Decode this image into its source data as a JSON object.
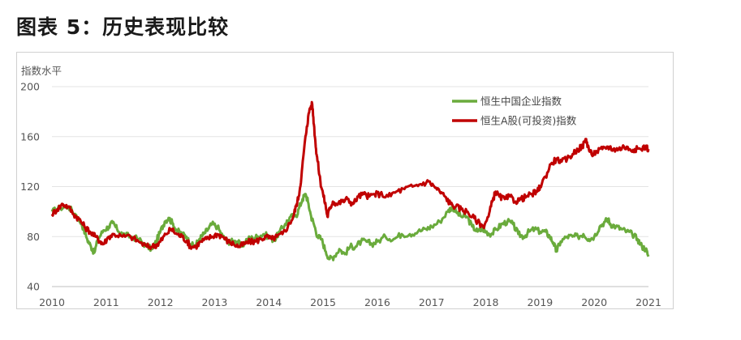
{
  "page": {
    "title": "图表 5：历史表现比较"
  },
  "chart_data": {
    "type": "line",
    "ylabel": "指数水平",
    "xlabel": "",
    "ylim": [
      40,
      200
    ],
    "xlim": [
      2010,
      2021
    ],
    "y_ticks": [
      "40",
      "80",
      "120",
      "160",
      "200"
    ],
    "x_ticks": [
      "2010",
      "2011",
      "2012",
      "2013",
      "2014",
      "2015",
      "2016",
      "2017",
      "2018",
      "2019",
      "2020",
      "2021"
    ],
    "grid": "horizontal",
    "legend_position": "top-right",
    "series": [
      {
        "name": "恒生中国企业指数",
        "color": "#6aab3c",
        "points": [
          [
            2010.0,
            100
          ],
          [
            2010.15,
            103
          ],
          [
            2010.3,
            104
          ],
          [
            2010.45,
            97
          ],
          [
            2010.55,
            90
          ],
          [
            2010.65,
            78
          ],
          [
            2010.72,
            72
          ],
          [
            2010.78,
            67
          ],
          [
            2010.85,
            78
          ],
          [
            2010.95,
            85
          ],
          [
            2011.05,
            88
          ],
          [
            2011.12,
            91
          ],
          [
            2011.2,
            86
          ],
          [
            2011.3,
            82
          ],
          [
            2011.45,
            80
          ],
          [
            2011.6,
            78
          ],
          [
            2011.75,
            72
          ],
          [
            2011.85,
            70
          ],
          [
            2011.92,
            76
          ],
          [
            2012.0,
            84
          ],
          [
            2012.08,
            92
          ],
          [
            2012.15,
            95
          ],
          [
            2012.22,
            91
          ],
          [
            2012.3,
            85
          ],
          [
            2012.4,
            82
          ],
          [
            2012.48,
            80
          ],
          [
            2012.55,
            74
          ],
          [
            2012.63,
            72
          ],
          [
            2012.72,
            78
          ],
          [
            2012.8,
            82
          ],
          [
            2012.88,
            86
          ],
          [
            2012.95,
            90
          ],
          [
            2013.05,
            88
          ],
          [
            2013.15,
            80
          ],
          [
            2013.25,
            76
          ],
          [
            2013.35,
            76
          ],
          [
            2013.42,
            76
          ],
          [
            2013.5,
            72
          ],
          [
            2013.6,
            78
          ],
          [
            2013.7,
            79
          ],
          [
            2013.8,
            80
          ],
          [
            2013.9,
            82
          ],
          [
            2014.0,
            80
          ],
          [
            2014.1,
            77
          ],
          [
            2014.2,
            84
          ],
          [
            2014.3,
            90
          ],
          [
            2014.4,
            96
          ],
          [
            2014.5,
            96
          ],
          [
            2014.55,
            102
          ],
          [
            2014.62,
            110
          ],
          [
            2014.68,
            114
          ],
          [
            2014.72,
            108
          ],
          [
            2014.78,
            96
          ],
          [
            2014.83,
            90
          ],
          [
            2014.9,
            80
          ],
          [
            2014.97,
            78
          ],
          [
            2015.05,
            68
          ],
          [
            2015.12,
            62
          ],
          [
            2015.2,
            64
          ],
          [
            2015.3,
            70
          ],
          [
            2015.4,
            66
          ],
          [
            2015.5,
            72
          ],
          [
            2015.6,
            72
          ],
          [
            2015.7,
            76
          ],
          [
            2015.8,
            76
          ],
          [
            2015.9,
            74
          ],
          [
            2016.0,
            76
          ],
          [
            2016.15,
            80
          ],
          [
            2016.3,
            78
          ],
          [
            2016.45,
            82
          ],
          [
            2016.6,
            82
          ],
          [
            2016.75,
            84
          ],
          [
            2016.9,
            86
          ],
          [
            2017.0,
            88
          ],
          [
            2017.15,
            92
          ],
          [
            2017.3,
            100
          ],
          [
            2017.38,
            104
          ],
          [
            2017.45,
            100
          ],
          [
            2017.55,
            96
          ],
          [
            2017.65,
            96
          ],
          [
            2017.75,
            88
          ],
          [
            2017.85,
            84
          ],
          [
            2017.95,
            86
          ],
          [
            2018.0,
            84
          ],
          [
            2018.1,
            82
          ],
          [
            2018.2,
            86
          ],
          [
            2018.3,
            90
          ],
          [
            2018.4,
            92
          ],
          [
            2018.5,
            90
          ],
          [
            2018.6,
            82
          ],
          [
            2018.7,
            80
          ],
          [
            2018.8,
            84
          ],
          [
            2018.9,
            86
          ],
          [
            2019.0,
            84
          ],
          [
            2019.1,
            84
          ],
          [
            2019.18,
            80
          ],
          [
            2019.25,
            75
          ],
          [
            2019.3,
            68
          ],
          [
            2019.38,
            76
          ],
          [
            2019.5,
            80
          ],
          [
            2019.6,
            80
          ],
          [
            2019.7,
            80
          ],
          [
            2019.8,
            82
          ],
          [
            2019.9,
            78
          ],
          [
            2020.0,
            80
          ],
          [
            2020.1,
            88
          ],
          [
            2020.2,
            92
          ],
          [
            2020.25,
            94
          ],
          [
            2020.3,
            90
          ],
          [
            2020.4,
            88
          ],
          [
            2020.5,
            86
          ],
          [
            2020.6,
            84
          ],
          [
            2020.7,
            82
          ],
          [
            2020.8,
            78
          ],
          [
            2020.88,
            72
          ],
          [
            2020.95,
            70
          ],
          [
            2021.0,
            64
          ]
        ]
      },
      {
        "name": "恒生A股(可投资)指数",
        "color": "#c00000",
        "points": [
          [
            2010.0,
            98
          ],
          [
            2010.1,
            102
          ],
          [
            2010.2,
            106
          ],
          [
            2010.3,
            104
          ],
          [
            2010.4,
            98
          ],
          [
            2010.5,
            94
          ],
          [
            2010.6,
            88
          ],
          [
            2010.7,
            84
          ],
          [
            2010.8,
            80
          ],
          [
            2010.9,
            76
          ],
          [
            2010.95,
            74
          ],
          [
            2011.05,
            80
          ],
          [
            2011.15,
            82
          ],
          [
            2011.3,
            80
          ],
          [
            2011.45,
            80
          ],
          [
            2011.6,
            76
          ],
          [
            2011.75,
            72
          ],
          [
            2011.85,
            72
          ],
          [
            2011.95,
            74
          ],
          [
            2012.0,
            76
          ],
          [
            2012.1,
            82
          ],
          [
            2012.2,
            86
          ],
          [
            2012.3,
            82
          ],
          [
            2012.4,
            80
          ],
          [
            2012.5,
            76
          ],
          [
            2012.55,
            72
          ],
          [
            2012.65,
            72
          ],
          [
            2012.75,
            76
          ],
          [
            2012.85,
            78
          ],
          [
            2012.95,
            80
          ],
          [
            2013.05,
            82
          ],
          [
            2013.15,
            80
          ],
          [
            2013.25,
            76
          ],
          [
            2013.35,
            74
          ],
          [
            2013.45,
            72
          ],
          [
            2013.55,
            74
          ],
          [
            2013.65,
            76
          ],
          [
            2013.75,
            76
          ],
          [
            2013.85,
            78
          ],
          [
            2013.95,
            80
          ],
          [
            2014.05,
            78
          ],
          [
            2014.15,
            80
          ],
          [
            2014.25,
            82
          ],
          [
            2014.35,
            88
          ],
          [
            2014.45,
            96
          ],
          [
            2014.5,
            104
          ],
          [
            2014.55,
            112
          ],
          [
            2014.6,
            128
          ],
          [
            2014.65,
            150
          ],
          [
            2014.7,
            168
          ],
          [
            2014.75,
            182
          ],
          [
            2014.8,
            186
          ],
          [
            2014.83,
            170
          ],
          [
            2014.87,
            150
          ],
          [
            2014.9,
            140
          ],
          [
            2014.95,
            124
          ],
          [
            2015.0,
            114
          ],
          [
            2015.05,
            104
          ],
          [
            2015.08,
            96
          ],
          [
            2015.12,
            102
          ],
          [
            2015.18,
            108
          ],
          [
            2015.25,
            106
          ],
          [
            2015.35,
            108
          ],
          [
            2015.45,
            110
          ],
          [
            2015.55,
            106
          ],
          [
            2015.65,
            112
          ],
          [
            2015.75,
            114
          ],
          [
            2015.85,
            112
          ],
          [
            2015.95,
            114
          ],
          [
            2016.05,
            114
          ],
          [
            2016.2,
            112
          ],
          [
            2016.35,
            116
          ],
          [
            2016.5,
            118
          ],
          [
            2016.65,
            120
          ],
          [
            2016.8,
            122
          ],
          [
            2016.95,
            124
          ],
          [
            2017.05,
            120
          ],
          [
            2017.15,
            116
          ],
          [
            2017.25,
            112
          ],
          [
            2017.35,
            106
          ],
          [
            2017.45,
            104
          ],
          [
            2017.55,
            102
          ],
          [
            2017.65,
            100
          ],
          [
            2017.75,
            96
          ],
          [
            2017.85,
            92
          ],
          [
            2017.95,
            88
          ],
          [
            2018.05,
            96
          ],
          [
            2018.12,
            108
          ],
          [
            2018.18,
            116
          ],
          [
            2018.25,
            112
          ],
          [
            2018.35,
            110
          ],
          [
            2018.45,
            112
          ],
          [
            2018.55,
            108
          ],
          [
            2018.65,
            110
          ],
          [
            2018.75,
            112
          ],
          [
            2018.85,
            114
          ],
          [
            2018.95,
            116
          ],
          [
            2019.0,
            120
          ],
          [
            2019.1,
            128
          ],
          [
            2019.2,
            138
          ],
          [
            2019.3,
            142
          ],
          [
            2019.4,
            140
          ],
          [
            2019.5,
            142
          ],
          [
            2019.6,
            146
          ],
          [
            2019.7,
            150
          ],
          [
            2019.78,
            152
          ],
          [
            2019.85,
            158
          ],
          [
            2019.9,
            150
          ],
          [
            2019.95,
            146
          ],
          [
            2020.05,
            148
          ],
          [
            2020.15,
            150
          ],
          [
            2020.25,
            152
          ],
          [
            2020.35,
            150
          ],
          [
            2020.45,
            150
          ],
          [
            2020.55,
            152
          ],
          [
            2020.65,
            150
          ],
          [
            2020.75,
            150
          ],
          [
            2020.85,
            150
          ],
          [
            2020.95,
            152
          ],
          [
            2021.0,
            150
          ]
        ]
      }
    ]
  }
}
